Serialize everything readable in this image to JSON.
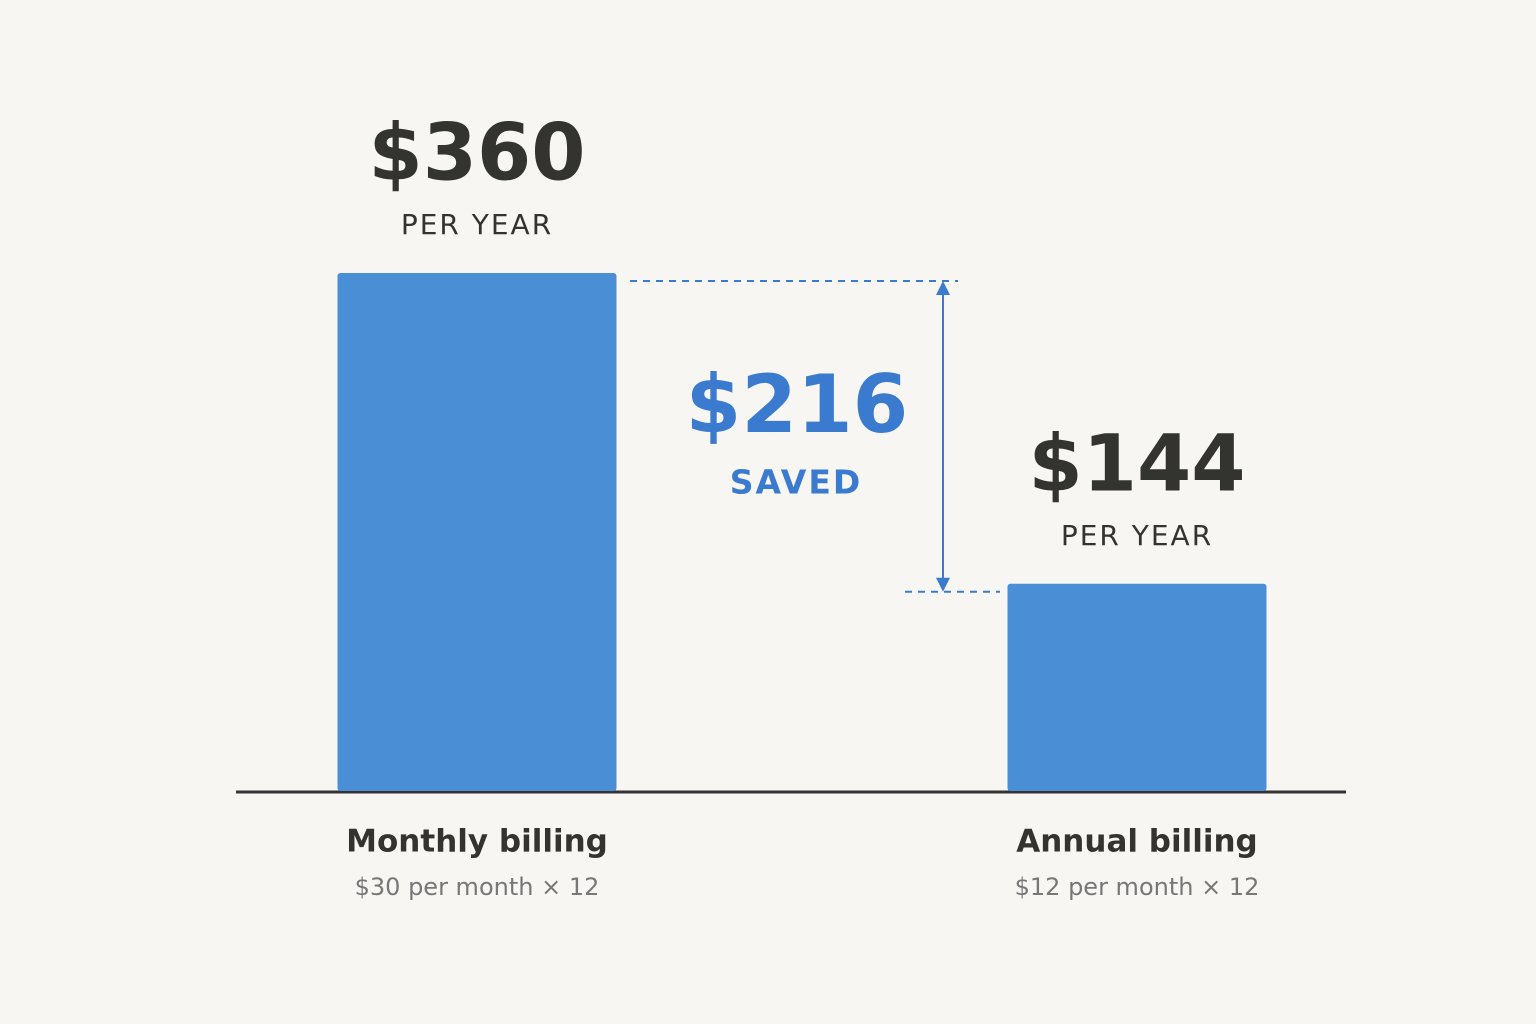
{
  "chart_data": {
    "type": "bar",
    "categories": [
      "Monthly billing",
      "Annual billing"
    ],
    "category_sublabels": [
      "$30 per month × 12",
      "$12 per month × 12"
    ],
    "values": [
      360,
      144
    ],
    "value_labels": [
      "$360",
      "$144"
    ],
    "value_sublabels": [
      "PER YEAR",
      "PER YEAR"
    ],
    "color": "#4a8fd6",
    "savings": {
      "value": 216,
      "label": "$216",
      "caption": "SAVED",
      "color": "#3a7bcf"
    }
  }
}
